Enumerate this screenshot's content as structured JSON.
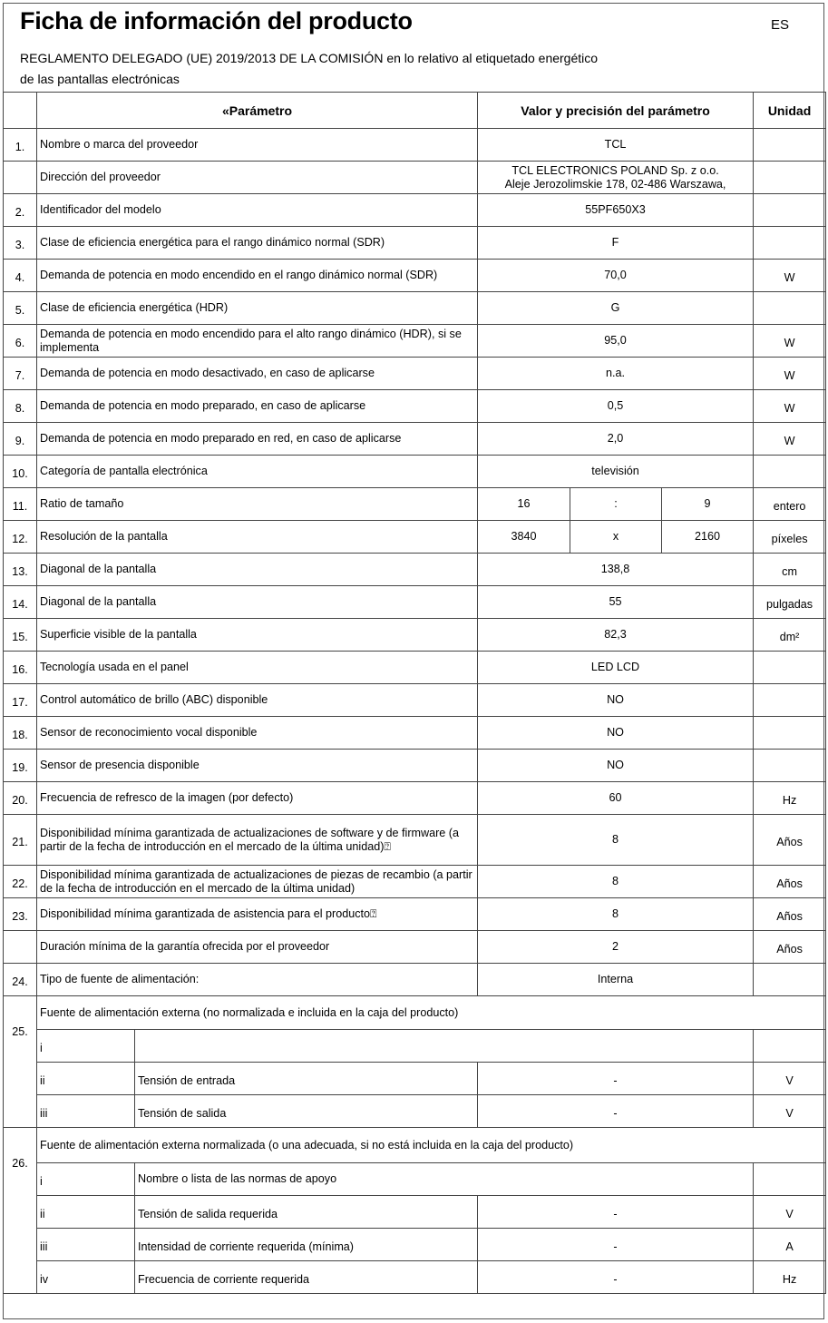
{
  "header": {
    "title": "Ficha de información del producto",
    "lang": "ES",
    "subtitle_line1": "REGLAMENTO DELEGADO (UE) 2019/2013 DE LA COMISIÓN en lo relativo al etiquetado energético",
    "subtitle_line2": "de las pantallas electrónicas"
  },
  "columns": {
    "param": "«Parámetro",
    "value": "Valor y precisión del parámetro",
    "unit": "Unidad"
  },
  "rows": [
    {
      "num": "1.",
      "param": "Nombre o marca del proveedor",
      "value": "TCL",
      "unit": ""
    },
    {
      "num": "",
      "param": "Dirección del proveedor",
      "value": "TCL ELECTRONICS POLAND Sp. z o.o.\nAleje Jerozolimskie 178, 02-486 Warszawa,",
      "unit": ""
    },
    {
      "num": "2.",
      "param": "Identificador del modelo",
      "value": "55PF650X3",
      "unit": ""
    },
    {
      "num": "3.",
      "param": "Clase de eficiencia energética para el rango dinámico normal (SDR)",
      "value": "F",
      "unit": ""
    },
    {
      "num": "4.",
      "param": "Demanda de potencia en modo encendido en el rango dinámico normal (SDR)",
      "value": "70,0",
      "unit": "W"
    },
    {
      "num": "5.",
      "param": "Clase de eficiencia energética (HDR)",
      "value": "G",
      "unit": ""
    },
    {
      "num": "6.",
      "param": "Demanda de potencia en modo encendido para el alto rango dinámico (HDR), si se implementa",
      "value": "95,0",
      "unit": "W"
    },
    {
      "num": "7.",
      "param": "Demanda de potencia en modo desactivado, en caso de aplicarse",
      "value": "n.a.",
      "unit": "W"
    },
    {
      "num": "8.",
      "param": "Demanda de potencia en modo preparado, en caso de aplicarse",
      "value": "0,5",
      "unit": "W"
    },
    {
      "num": "9.",
      "param": "Demanda de potencia en modo preparado en red, en caso de aplicarse",
      "value": "2,0",
      "unit": "W"
    },
    {
      "num": "10.",
      "param": "Categoría de pantalla electrónica",
      "value": "televisión",
      "unit": ""
    },
    {
      "num": "11.",
      "param": "Ratio de tamaño",
      "split": [
        "16",
        ":",
        "9"
      ],
      "unit": "entero"
    },
    {
      "num": "12.",
      "param": "Resolución de la pantalla",
      "split": [
        "3840",
        "x",
        "2160"
      ],
      "unit": "píxeles"
    },
    {
      "num": "13.",
      "param": "Diagonal de la pantalla",
      "value": "138,8",
      "unit": "cm"
    },
    {
      "num": "14.",
      "param": "Diagonal de la pantalla",
      "value": "55",
      "unit": "pulgadas"
    },
    {
      "num": "15.",
      "param": "Superficie visible de la pantalla",
      "value": "82,3",
      "unit": "dm²"
    },
    {
      "num": "16.",
      "param": "Tecnología usada en el panel",
      "value": "LED LCD",
      "unit": ""
    },
    {
      "num": "17.",
      "param": "Control automático de brillo (ABC) disponible",
      "value": "NO",
      "unit": ""
    },
    {
      "num": "18.",
      "param": "Sensor de reconocimiento vocal disponible",
      "value": "NO",
      "unit": ""
    },
    {
      "num": "19.",
      "param": "Sensor de presencia disponible",
      "value": "NO",
      "unit": ""
    },
    {
      "num": "20.",
      "param": "Frecuencia de refresco de la imagen (por defecto)",
      "value": "60",
      "unit": "Hz"
    },
    {
      "num": "21.",
      "param": "Disponibilidad mínima garantizada de actualizaciones de software y de firmware (a partir de la fecha de introducción en el mercado de la última unidad)⍰",
      "value": "8",
      "unit": "Años",
      "tall": true
    },
    {
      "num": "22.",
      "param": "Disponibilidad mínima garantizada de actualizaciones de piezas de recambio (a partir de la fecha de introducción en el mercado de la última unidad)",
      "value": "8",
      "unit": "Años"
    },
    {
      "num": "23.",
      "param": "Disponibilidad mínima garantizada de asistencia para el producto⍰",
      "value": "8",
      "unit": "Años"
    },
    {
      "num": "",
      "param": "Duración mínima de la garantía ofrecida por el proveedor",
      "value": "2",
      "unit": "Años"
    },
    {
      "num": "24.",
      "param": "Tipo de fuente de alimentación:",
      "value": "Interna",
      "unit": ""
    }
  ],
  "groups": [
    {
      "num": "25.",
      "title": "Fuente de alimentación externa (no normalizada e incluida en la caja del producto)",
      "sub": [
        {
          "idx": "i",
          "label": "",
          "full": true,
          "unit": ""
        },
        {
          "idx": "ii",
          "label": "Tensión de entrada",
          "value": "-",
          "unit": "V"
        },
        {
          "idx": "iii",
          "label": "Tensión de salida",
          "value": "-",
          "unit": "V"
        }
      ]
    },
    {
      "num": "26.",
      "title": "Fuente de alimentación externa normalizada (o una adecuada, si no está incluida en la caja del producto)",
      "sub": [
        {
          "idx": "i",
          "label": "Nombre o lista de las normas de apoyo",
          "full": true,
          "unit": ""
        },
        {
          "idx": "ii",
          "label": "Tensión de salida requerida",
          "value": "-",
          "unit": "V"
        },
        {
          "idx": "iii",
          "label": "Intensidad de corriente requerida (mínima)",
          "value": "-",
          "unit": "A"
        },
        {
          "idx": "iv",
          "label": "Frecuencia de corriente requerida",
          "value": "-",
          "unit": "Hz"
        }
      ]
    }
  ]
}
